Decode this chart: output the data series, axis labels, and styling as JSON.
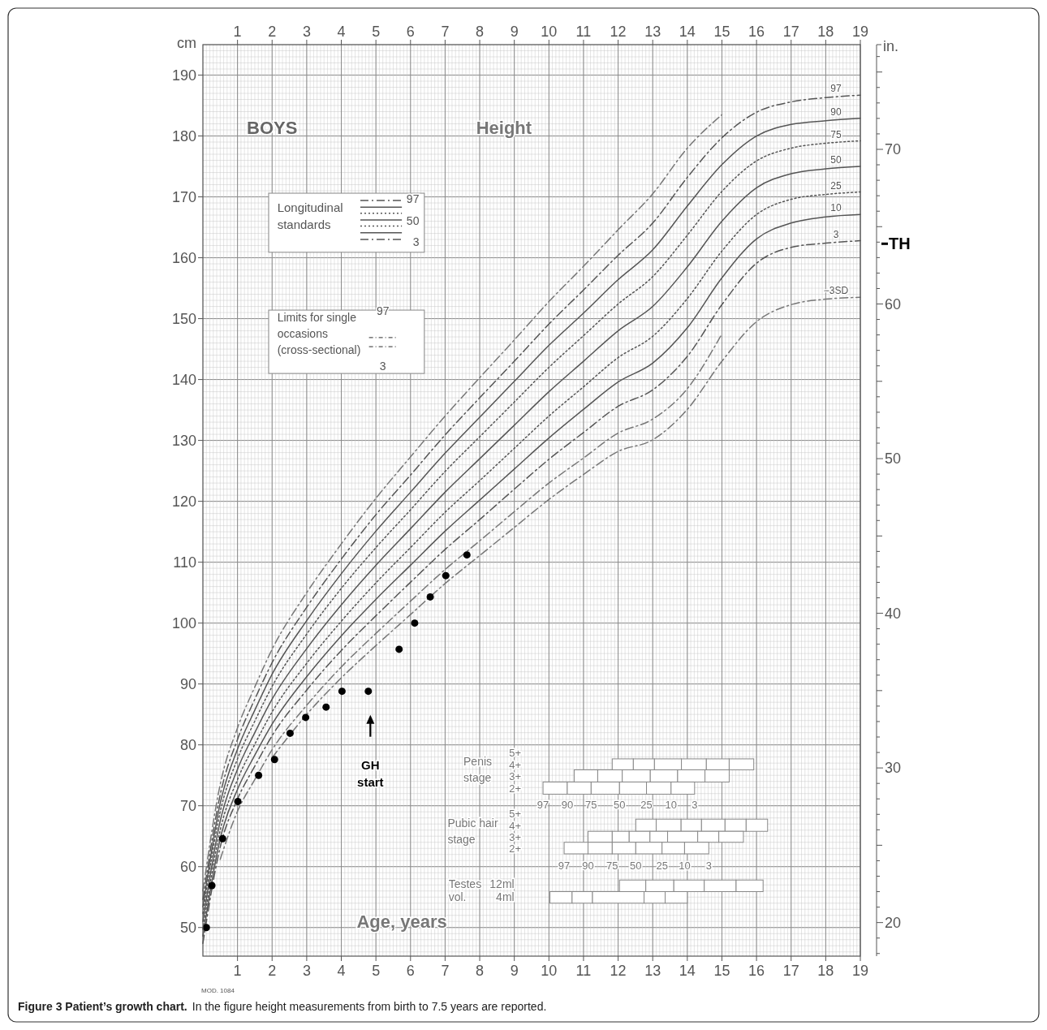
{
  "chart_data": {
    "type": "line",
    "title": "Figure 3 Patient’s growth chart.",
    "subtitle": "In the figure height measurements from birth to 7.5 years are reported.",
    "ylabel": "cm",
    "y2label": "in.",
    "xlim": [
      0,
      19
    ],
    "xticks": [
      1,
      2,
      3,
      4,
      5,
      6,
      7,
      8,
      9,
      10,
      11,
      12,
      13,
      14,
      15,
      16,
      17,
      18,
      19
    ],
    "x2lim": [
      0,
      19
    ],
    "x2ticks": [
      1,
      2,
      3,
      4,
      5,
      6,
      7,
      8,
      9,
      10,
      11,
      12,
      13,
      14,
      15,
      16,
      17,
      18,
      19
    ],
    "ylim": [
      45.3,
      195
    ],
    "yticks": [
      50,
      60,
      70,
      80,
      90,
      100,
      110,
      120,
      130,
      140,
      150,
      160,
      170,
      180,
      190
    ],
    "y2lim": [
      17.83,
      76.77
    ],
    "y2ticks": [
      {
        "value": 18,
        "label": null
      },
      {
        "value": 19,
        "label": null
      },
      20,
      {
        "value": 21,
        "label": null
      },
      {
        "value": 22,
        "label": null
      },
      {
        "value": 23,
        "label": null
      },
      {
        "value": 24,
        "label": null
      },
      {
        "value": 25,
        "label": null
      },
      {
        "value": 26,
        "label": null
      },
      {
        "value": 27,
        "label": null
      },
      {
        "value": 28,
        "label": null
      },
      {
        "value": 29,
        "label": null
      },
      30,
      {
        "value": 31,
        "label": null
      },
      {
        "value": 32,
        "label": null
      },
      {
        "value": 33,
        "label": null
      },
      {
        "value": 34,
        "label": null
      },
      {
        "value": 35,
        "label": null
      },
      {
        "value": 36,
        "label": null
      },
      {
        "value": 37,
        "label": null
      },
      {
        "value": 38,
        "label": null
      },
      {
        "value": 39,
        "label": null
      },
      40,
      {
        "value": 41,
        "label": null
      },
      {
        "value": 42,
        "label": null
      },
      {
        "value": 43,
        "label": null
      },
      {
        "value": 44,
        "label": null
      },
      {
        "value": 45,
        "label": null
      },
      {
        "value": 46,
        "label": null
      },
      {
        "value": 47,
        "label": null
      },
      {
        "value": 48,
        "label": null
      },
      {
        "value": 49,
        "label": null
      },
      50,
      {
        "value": 51,
        "label": null
      },
      {
        "value": 52,
        "label": null
      },
      {
        "value": 53,
        "label": null
      },
      {
        "value": 54,
        "label": null
      },
      {
        "value": 55,
        "label": null
      },
      {
        "value": 56,
        "label": null
      },
      {
        "value": 57,
        "label": null
      },
      {
        "value": 58,
        "label": null
      },
      {
        "value": 59,
        "label": null
      },
      60,
      {
        "value": 61,
        "label": null
      },
      {
        "value": 62,
        "label": null
      },
      {
        "value": 63,
        "label": null
      },
      {
        "value": 64,
        "label": null
      },
      {
        "value": 65,
        "label": null
      },
      {
        "value": 66,
        "label": null
      },
      {
        "value": 67,
        "label": null
      },
      {
        "value": 68,
        "label": null
      },
      {
        "value": 69,
        "label": null
      },
      70,
      {
        "value": 71,
        "label": null
      },
      {
        "value": 72,
        "label": null
      },
      {
        "value": 73,
        "label": null
      },
      {
        "value": 74,
        "label": null
      },
      {
        "value": 75,
        "label": null
      },
      {
        "value": 76,
        "label": null
      }
    ],
    "grid": true,
    "x": [
      0,
      0.5,
      1,
      1.5,
      2,
      3,
      4,
      5,
      6,
      7,
      8,
      9,
      10,
      11,
      12,
      13,
      14,
      15,
      16,
      17,
      18,
      19
    ],
    "series": [
      {
        "name": "97",
        "line_style": "dashed",
        "color": "#555555",
        "values": [
          54.6,
          71.8,
          80.9,
          87.5,
          93.5,
          102.6,
          110.5,
          117.8,
          124.3,
          130.9,
          137,
          143,
          149.1,
          154.7,
          160.4,
          165.7,
          173.2,
          179.7,
          183.9,
          185.6,
          186.3,
          186.7
        ]
      },
      {
        "name": "90",
        "line_style": "solid",
        "color": "#555555",
        "values": [
          53.4,
          70.4,
          79.3,
          85.7,
          91.6,
          100.4,
          108.1,
          115.1,
          121.5,
          127.9,
          133.8,
          139.7,
          145.6,
          150.9,
          156.4,
          161.3,
          168.5,
          175.3,
          180,
          181.9,
          182.5,
          182.9
        ]
      },
      {
        "name": "75",
        "line_style": "dotted",
        "color": "#555555",
        "values": [
          52.3,
          69,
          77.7,
          83.9,
          89.6,
          98.2,
          105.7,
          112.4,
          118.6,
          124.9,
          130.6,
          136.3,
          142,
          147.2,
          152.4,
          156.9,
          163.7,
          170.9,
          175.9,
          178,
          178.8,
          179.2
        ]
      },
      {
        "name": "50",
        "line_style": "solid",
        "color": "#555555",
        "values": [
          51,
          67.5,
          76,
          82,
          87.5,
          95.8,
          103,
          109.5,
          115.5,
          121.5,
          127,
          132.5,
          138,
          143,
          148,
          152,
          158.5,
          166,
          171.5,
          173.8,
          174.6,
          175
        ]
      },
      {
        "name": "25",
        "line_style": "dotted",
        "color": "#555555",
        "values": [
          49.7,
          66,
          74.3,
          80.1,
          85.4,
          93.4,
          100.3,
          106.6,
          112.4,
          118.2,
          123.4,
          128.7,
          134,
          138.8,
          143.6,
          147.1,
          153.3,
          161.1,
          167.1,
          169.6,
          170.4,
          170.8
        ]
      },
      {
        "name": "10",
        "line_style": "solid",
        "color": "#555555",
        "values": [
          48.6,
          64.6,
          72.7,
          78.3,
          83.4,
          91.2,
          97.9,
          103.9,
          109.5,
          115.1,
          120.2,
          125.3,
          130.4,
          135.1,
          139.6,
          142.7,
          148.5,
          156.7,
          163.1,
          165.7,
          166.7,
          167.1
        ]
      },
      {
        "name": "3",
        "line_style": "dashed",
        "color": "#555555",
        "values": [
          47.4,
          63.2,
          71.1,
          76.5,
          81.5,
          89,
          95.5,
          101.2,
          106.7,
          112.1,
          117,
          122,
          126.9,
          131.3,
          135.6,
          138.3,
          143.8,
          152.3,
          159.1,
          161.7,
          162.4,
          162.8
        ]
      },
      {
        "line_style": "dashed",
        "color": "#777777",
        "values": [
          56,
          73.5,
          82.8,
          89.5,
          95.7,
          105,
          113,
          120.5,
          127.3,
          134,
          140.3,
          146.5,
          152.8,
          158.6,
          164.6,
          170.5,
          178,
          183.5,
          null,
          null,
          null,
          null
        ]
      },
      {
        "line_style": "dashed",
        "color": "#777777",
        "values": [
          null,
          61.2,
          69.1,
          74.3,
          79.2,
          86.5,
          92.8,
          98.3,
          103.6,
          108.8,
          113.5,
          118.3,
          123,
          127.1,
          131.2,
          133.5,
          138.5,
          147.5,
          null,
          null,
          null,
          null
        ]
      },
      {
        "name": "−3SD",
        "line_style": "dashed",
        "color": "#777777",
        "values": [
          null,
          null,
          null,
          null,
          77.9,
          85,
          91,
          96.3,
          101.4,
          106.5,
          111.1,
          115.7,
          120.3,
          124.4,
          128.2,
          130.1,
          135.1,
          143,
          149.5,
          152.3,
          153.2,
          153.5
        ]
      },
      {
        "type": "scatter",
        "marker": "circle",
        "color": "#000000",
        "x": [
          0.1,
          0.26,
          0.57,
          1.01,
          1.61,
          2.07,
          2.52,
          2.97,
          3.56,
          4.02,
          4.78,
          5.67,
          6.12,
          6.57,
          7.02,
          7.63
        ],
        "values": [
          50,
          56.9,
          64.6,
          70.7,
          75,
          77.6,
          81.9,
          84.5,
          86.2,
          88.8,
          88.8,
          95.7,
          100,
          104.3,
          107.8,
          111.2
        ]
      }
    ],
    "ref_lines": [
      {
        "axis": "y",
        "value": 162.3,
        "label": "TH"
      }
    ],
    "annotations": [
      "BOYS",
      "Height",
      "Longitudinal standards",
      "97",
      "50",
      "3",
      "Limits for single occasions (cross-sectional)",
      "97",
      "3",
      "Penis stage",
      "5+ 4+ 3+ 2+",
      "97 90 75 50 25 10 3",
      "Pubic hair stage",
      "5+ 4+ 3+ 2+",
      "97 90 75 50 25 10 3",
      "Testes",
      "vol.",
      "12ml",
      "4ml",
      "Age, years",
      "MOD. 1084",
      "GH start"
    ]
  }
}
